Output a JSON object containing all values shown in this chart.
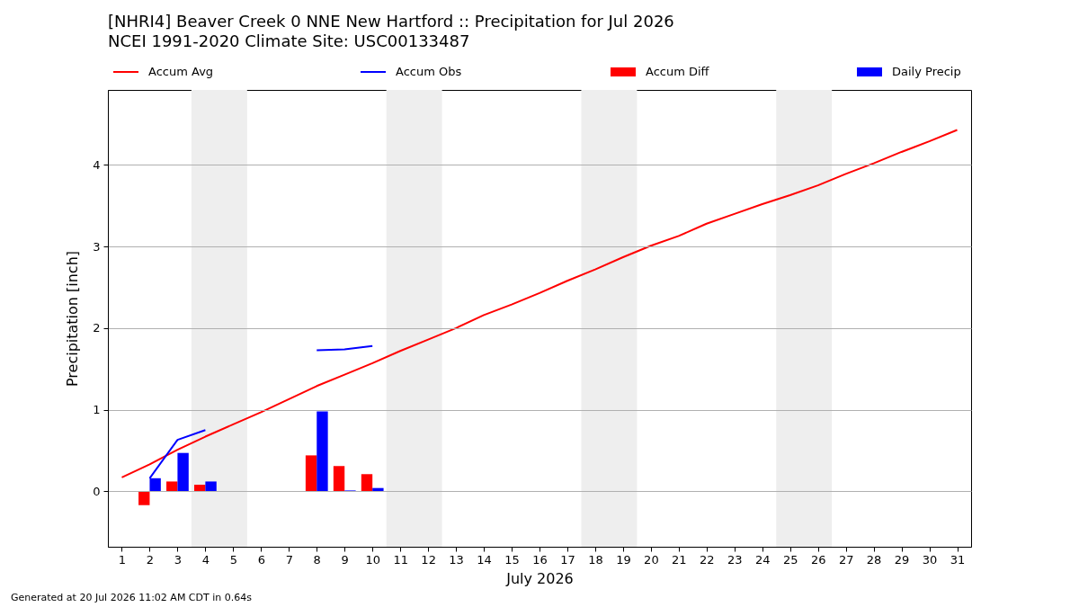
{
  "chart_data": {
    "type": "line",
    "title": "[NHRI4] Beaver Creek 0 NNE New Hartford :: Precipitation for Jul 2026",
    "subtitle": "NCEI 1991-2020 Climate Site: USC00133487",
    "xlabel": "July 2026",
    "ylabel": "Precipitation [inch]",
    "x": [
      1,
      2,
      3,
      4,
      5,
      6,
      7,
      8,
      9,
      10,
      11,
      12,
      13,
      14,
      15,
      16,
      17,
      18,
      19,
      20,
      21,
      22,
      23,
      24,
      25,
      26,
      27,
      28,
      29,
      30,
      31
    ],
    "series": [
      {
        "name": "Accum Avg",
        "color": "#ff0000",
        "values": [
          0.17,
          0.33,
          0.51,
          0.67,
          0.82,
          0.97,
          1.13,
          1.29,
          1.43,
          1.57,
          1.72,
          1.86,
          2.0,
          2.16,
          2.29,
          2.43,
          2.58,
          2.72,
          2.87,
          3.01,
          3.13,
          3.28,
          3.4,
          3.52,
          3.63,
          3.75,
          3.89,
          4.02,
          4.16,
          4.29,
          4.43
        ]
      },
      {
        "name": "Accum Obs",
        "color": "#0000ff",
        "values": [
          null,
          0.16,
          0.63,
          0.75,
          null,
          null,
          null,
          1.73,
          1.74,
          1.78,
          null,
          null,
          null,
          null,
          null,
          null,
          null,
          null,
          null,
          null,
          null,
          null,
          null,
          null,
          null,
          null,
          null,
          null,
          null,
          null,
          null
        ]
      },
      {
        "name": "Accum Diff",
        "type": "bar",
        "color": "#ff0000",
        "values": [
          null,
          -0.17,
          0.12,
          0.08,
          null,
          null,
          null,
          0.44,
          0.31,
          0.21,
          null,
          null,
          null,
          null,
          null,
          null,
          null,
          null,
          null,
          null,
          null,
          null,
          null,
          null,
          null,
          null,
          null,
          null,
          null,
          null,
          null
        ]
      },
      {
        "name": "Daily Precip",
        "type": "bar",
        "color": "#0000ff",
        "values": [
          null,
          0.16,
          0.47,
          0.12,
          null,
          null,
          null,
          0.98,
          0.01,
          0.04,
          null,
          null,
          null,
          null,
          null,
          null,
          null,
          null,
          null,
          null,
          null,
          null,
          null,
          null,
          null,
          null,
          null,
          null,
          null,
          null,
          null
        ]
      }
    ],
    "xlim": [
      0.5,
      31.5
    ],
    "xticks": [
      1,
      2,
      3,
      4,
      5,
      6,
      7,
      8,
      9,
      10,
      11,
      12,
      13,
      14,
      15,
      16,
      17,
      18,
      19,
      20,
      21,
      22,
      23,
      24,
      25,
      26,
      27,
      28,
      29,
      30,
      31
    ],
    "ylim": [
      -0.68,
      4.92
    ],
    "yticks": [
      0,
      1,
      2,
      3,
      4
    ],
    "grid": "y",
    "legend": "top",
    "bands": [
      {
        "axis": "x",
        "from": 3.5,
        "to": 5.5,
        "color": "#eeeeee"
      },
      {
        "axis": "x",
        "from": 10.5,
        "to": 12.5,
        "color": "#eeeeee"
      },
      {
        "axis": "x",
        "from": 17.5,
        "to": 19.5,
        "color": "#eeeeee"
      },
      {
        "axis": "x",
        "from": 24.5,
        "to": 26.5,
        "color": "#eeeeee"
      }
    ],
    "annotations": [
      "Generated at 20 Jul 2026 11:02 AM CDT in 0.64s"
    ]
  }
}
